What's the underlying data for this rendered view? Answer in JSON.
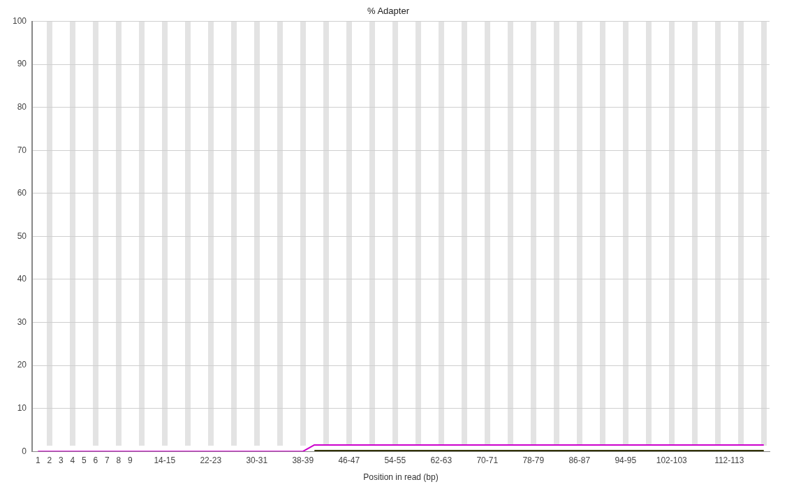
{
  "chart_data": {
    "type": "line",
    "title": "% Adapter",
    "xlabel": "Position in read (bp)",
    "categories": [
      "1",
      "2",
      "3",
      "4",
      "5",
      "6",
      "7",
      "8",
      "9",
      null,
      null,
      "14-15",
      null,
      null,
      null,
      "22-23",
      null,
      null,
      null,
      "30-31",
      null,
      null,
      null,
      "38-39",
      null,
      null,
      null,
      "46-47",
      null,
      null,
      null,
      "54-55",
      null,
      null,
      null,
      "62-63",
      null,
      null,
      null,
      "70-71",
      null,
      null,
      null,
      "78-79",
      null,
      null,
      null,
      "86-87",
      null,
      null,
      null,
      "94-95",
      null,
      null,
      null,
      "102-103",
      null,
      null,
      null,
      null,
      "112-113",
      null,
      null,
      null
    ],
    "series": [
      {
        "color": "#333300",
        "values": [
          null,
          null,
          null,
          null,
          null,
          null,
          null,
          null,
          null,
          null,
          null,
          null,
          null,
          null,
          null,
          null,
          null,
          null,
          null,
          null,
          null,
          null,
          null,
          null,
          0.2,
          0.2,
          0.2,
          0.2,
          0.2,
          0.2,
          0.2,
          0.2,
          0.2,
          0.2,
          0.2,
          0.2,
          0.2,
          0.2,
          0.2,
          0.2,
          0.2,
          0.2,
          0.2,
          0.2,
          0.2,
          0.2,
          0.2,
          0.2,
          0.2,
          0.2,
          0.2,
          0.2,
          0.2,
          0.2,
          0.2,
          0.2,
          0.2,
          0.2,
          0.2,
          0.2,
          0.2,
          0.2,
          0.2,
          0.2
        ]
      },
      {
        "color": "#cc00cc",
        "values": [
          0,
          0,
          0,
          0,
          0,
          0,
          0,
          0,
          0,
          0,
          0,
          0,
          0,
          0,
          0,
          0,
          0,
          0,
          0,
          0,
          0,
          0,
          0,
          0,
          1.5,
          1.5,
          1.5,
          1.5,
          1.5,
          1.5,
          1.5,
          1.5,
          1.5,
          1.5,
          1.5,
          1.5,
          1.5,
          1.5,
          1.5,
          1.5,
          1.5,
          1.5,
          1.5,
          1.5,
          1.5,
          1.5,
          1.5,
          1.5,
          1.5,
          1.5,
          1.5,
          1.5,
          1.5,
          1.5,
          1.5,
          1.5,
          1.5,
          1.5,
          1.5,
          1.5,
          1.5,
          1.5,
          1.5,
          1.5
        ]
      }
    ],
    "ylim": [
      0,
      100
    ],
    "yticks": [
      0,
      10,
      20,
      30,
      40,
      50,
      60,
      70,
      80,
      90,
      100
    ],
    "grid": "y",
    "marker": "none",
    "line_style": "solid"
  }
}
